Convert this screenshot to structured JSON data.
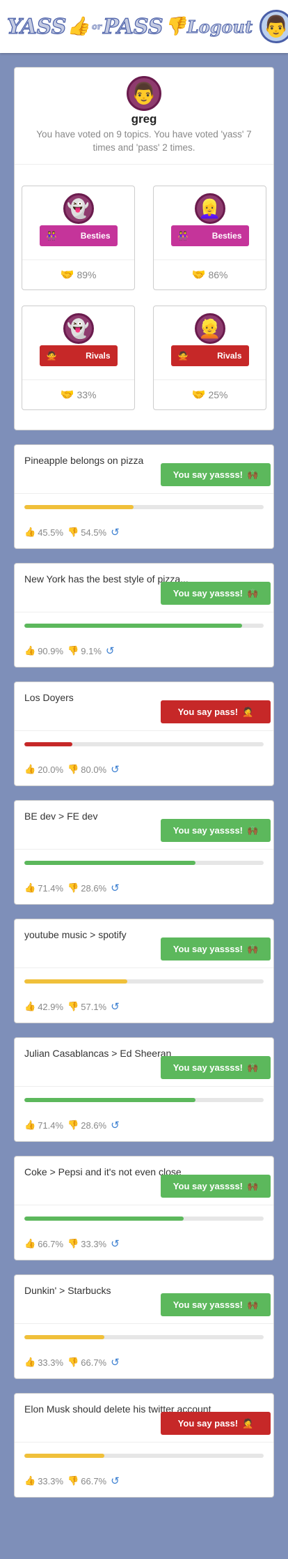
{
  "header": {
    "logo_yass": "YASS",
    "logo_or": "or",
    "logo_pass": "PASS",
    "logo_thumb_up": "👍",
    "logo_thumb_down": "👎",
    "logout_label": "Logout",
    "avatar_glyph": "👨"
  },
  "profile": {
    "avatar_glyph": "👨",
    "username": "greg",
    "summary": "You have voted on 9 topics. You have voted 'yass' 7 times and 'pass' 2 times."
  },
  "relationships": [
    {
      "avatar_glyph": "👻",
      "label": "Besties",
      "kind": "besties",
      "badge_glyph": "👭",
      "percent": "89%"
    },
    {
      "avatar_glyph": "👱‍♀️",
      "label": "Besties",
      "kind": "besties",
      "badge_glyph": "👭",
      "percent": "86%"
    },
    {
      "avatar_glyph": "👻",
      "label": "Rivals",
      "kind": "rivals",
      "badge_glyph": "🙅",
      "percent": "33%"
    },
    {
      "avatar_glyph": "👱",
      "label": "Rivals",
      "kind": "rivals",
      "badge_glyph": "🙅",
      "percent": "25%"
    }
  ],
  "handshake_glyph": "🤝",
  "yass_label": "You say yassss!",
  "yass_glyph": "🙌🏾",
  "pass_label": "You say pass!",
  "pass_glyph": "🤦",
  "colors": {
    "green": "#5cb85c",
    "yellow": "#f0c03a",
    "red": "#c62828"
  },
  "topics": [
    {
      "title": "Pineapple belongs on pizza",
      "vote": "yass",
      "yass_pct": "45.5%",
      "pass_pct": "54.5%",
      "yass_fraction": 0.455,
      "bar_color": "yellow"
    },
    {
      "title": "New York has the best style of pizza...",
      "vote": "yass",
      "yass_pct": "90.9%",
      "pass_pct": "9.1%",
      "yass_fraction": 0.909,
      "bar_color": "green"
    },
    {
      "title": "Los Doyers",
      "vote": "pass",
      "yass_pct": "20.0%",
      "pass_pct": "80.0%",
      "yass_fraction": 0.2,
      "bar_color": "red"
    },
    {
      "title": "BE dev > FE dev",
      "vote": "yass",
      "yass_pct": "71.4%",
      "pass_pct": "28.6%",
      "yass_fraction": 0.714,
      "bar_color": "green"
    },
    {
      "title": "youtube music > spotify",
      "vote": "yass",
      "yass_pct": "42.9%",
      "pass_pct": "57.1%",
      "yass_fraction": 0.429,
      "bar_color": "yellow"
    },
    {
      "title": "Julian Casablancas > Ed Sheeran",
      "vote": "yass",
      "yass_pct": "71.4%",
      "pass_pct": "28.6%",
      "yass_fraction": 0.714,
      "bar_color": "green"
    },
    {
      "title": "Coke > Pepsi and it's not even close",
      "vote": "yass",
      "yass_pct": "66.7%",
      "pass_pct": "33.3%",
      "yass_fraction": 0.667,
      "bar_color": "green"
    },
    {
      "title": "Dunkin' > Starbucks",
      "vote": "yass",
      "yass_pct": "33.3%",
      "pass_pct": "66.7%",
      "yass_fraction": 0.333,
      "bar_color": "yellow"
    },
    {
      "title": "Elon Musk should delete his twitter account",
      "vote": "pass",
      "yass_pct": "33.3%",
      "pass_pct": "66.7%",
      "yass_fraction": 0.333,
      "bar_color": "yellow"
    }
  ]
}
